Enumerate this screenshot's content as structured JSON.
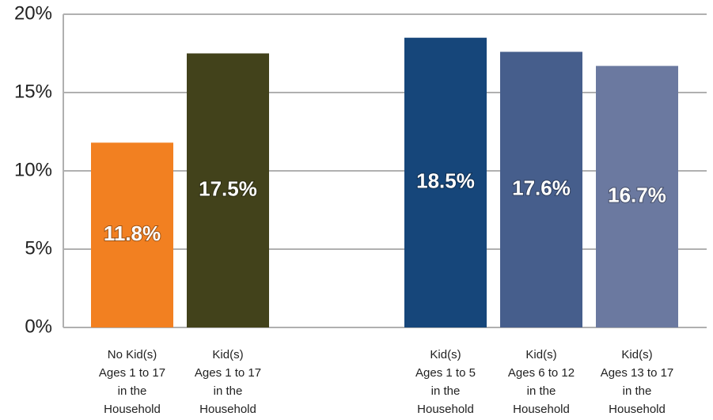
{
  "chart_data": {
    "type": "bar",
    "categories": [
      [
        "No Kid(s)",
        "Ages 1 to 17",
        "in the",
        "Household"
      ],
      [
        "Kid(s)",
        "Ages 1 to 17",
        "in the",
        "Household"
      ],
      [
        "Kid(s)",
        "Ages 1 to 5",
        "in the",
        "Household"
      ],
      [
        "Kid(s)",
        "Ages 6 to 12",
        "in the",
        "Household"
      ],
      [
        "Kid(s)",
        "Ages 13 to 17",
        "in the",
        "Household"
      ]
    ],
    "values": [
      11.8,
      17.5,
      18.5,
      17.6,
      16.7
    ],
    "value_labels": [
      "11.8%",
      "17.5%",
      "18.5%",
      "17.6%",
      "16.7%"
    ],
    "colors": [
      "#f28021",
      "#42421b",
      "#16467a",
      "#465e8c",
      "#6b79a0"
    ],
    "ylim": [
      0,
      20
    ],
    "yticks": [
      {
        "value": 0,
        "label": "0%"
      },
      {
        "value": 5,
        "label": "5%"
      },
      {
        "value": 10,
        "label": "10%"
      },
      {
        "value": 15,
        "label": "15%"
      },
      {
        "value": 20,
        "label": "20%"
      }
    ],
    "grid": true
  }
}
